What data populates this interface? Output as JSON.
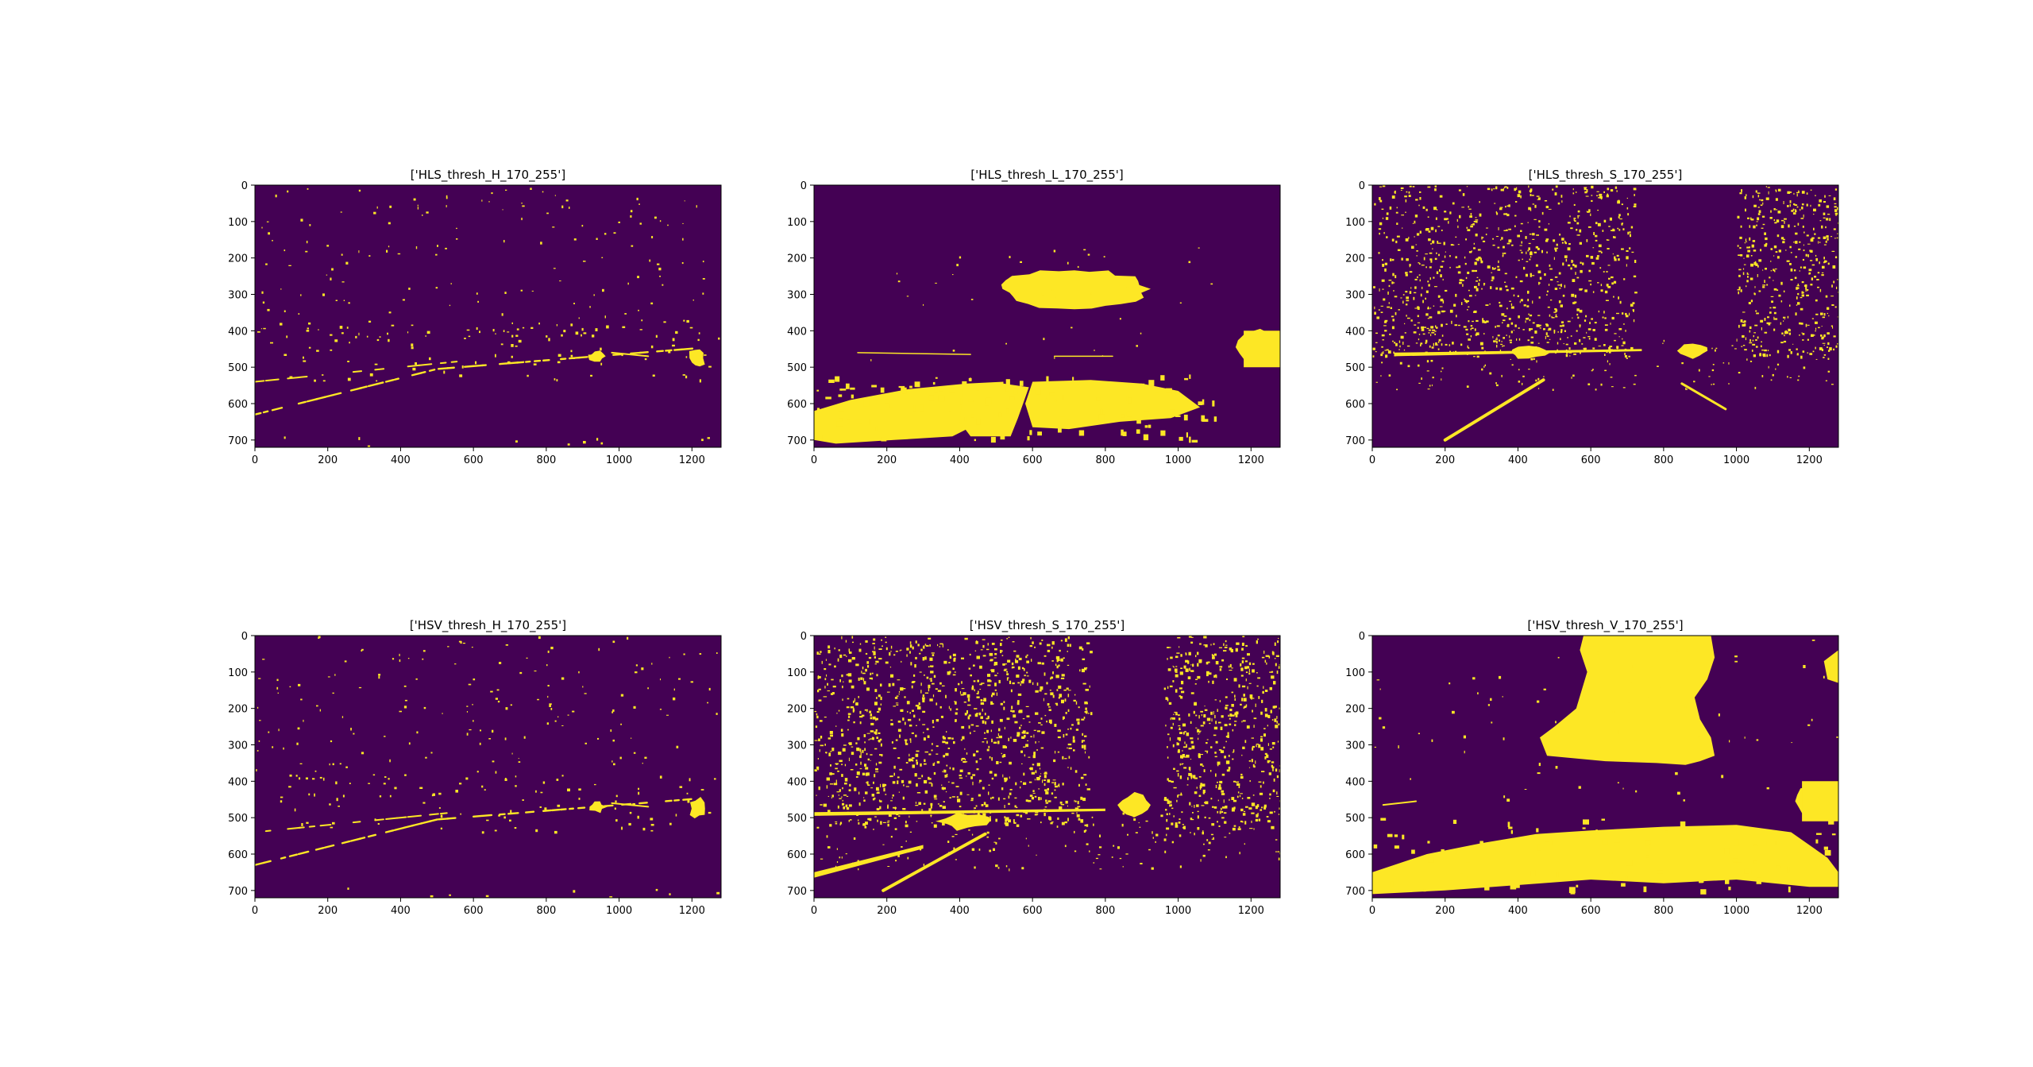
{
  "figure": {
    "background": "#ffffff",
    "colormap": {
      "low": "#440154",
      "high": "#fde725"
    }
  },
  "chart_data": [
    {
      "type": "heatmap",
      "title": "['HLS_thresh_H_170_255']",
      "xlabel": "",
      "ylabel": "",
      "xlim": [
        0,
        1280
      ],
      "ylim": [
        720,
        0
      ],
      "xticks": [
        0,
        200,
        400,
        600,
        800,
        1000,
        1200
      ],
      "yticks": [
        0,
        100,
        200,
        300,
        400,
        500,
        600,
        700
      ],
      "grid": false,
      "pattern": "hue_sparse"
    },
    {
      "type": "heatmap",
      "title": "['HLS_thresh_L_170_255']",
      "xlabel": "",
      "ylabel": "",
      "xlim": [
        0,
        1280
      ],
      "ylim": [
        720,
        0
      ],
      "xticks": [
        0,
        200,
        400,
        600,
        800,
        1000,
        1200
      ],
      "yticks": [
        0,
        100,
        200,
        300,
        400,
        500,
        600,
        700
      ],
      "grid": false,
      "pattern": "lightness"
    },
    {
      "type": "heatmap",
      "title": "['HLS_thresh_S_170_255']",
      "xlabel": "",
      "ylabel": "",
      "xlim": [
        0,
        1280
      ],
      "ylim": [
        720,
        0
      ],
      "xticks": [
        0,
        200,
        400,
        600,
        800,
        1000,
        1200
      ],
      "yticks": [
        0,
        100,
        200,
        300,
        400,
        500,
        600,
        700
      ],
      "grid": false,
      "pattern": "saturation_hls"
    },
    {
      "type": "heatmap",
      "title": "['HSV_thresh_H_170_255']",
      "xlabel": "",
      "ylabel": "",
      "xlim": [
        0,
        1280
      ],
      "ylim": [
        720,
        0
      ],
      "xticks": [
        0,
        200,
        400,
        600,
        800,
        1000,
        1200
      ],
      "yticks": [
        0,
        100,
        200,
        300,
        400,
        500,
        600,
        700
      ],
      "grid": false,
      "pattern": "hue_sparse"
    },
    {
      "type": "heatmap",
      "title": "['HSV_thresh_S_170_255']",
      "xlabel": "",
      "ylabel": "",
      "xlim": [
        0,
        1280
      ],
      "ylim": [
        720,
        0
      ],
      "xticks": [
        0,
        200,
        400,
        600,
        800,
        1000,
        1200
      ],
      "yticks": [
        0,
        100,
        200,
        300,
        400,
        500,
        600,
        700
      ],
      "grid": false,
      "pattern": "saturation_hsv"
    },
    {
      "type": "heatmap",
      "title": "['HSV_thresh_V_170_255']",
      "xlabel": "",
      "ylabel": "",
      "xlim": [
        0,
        1280
      ],
      "ylim": [
        720,
        0
      ],
      "xticks": [
        0,
        200,
        400,
        600,
        800,
        1000,
        1200
      ],
      "yticks": [
        0,
        100,
        200,
        300,
        400,
        500,
        600,
        700
      ],
      "grid": false,
      "pattern": "value"
    }
  ]
}
